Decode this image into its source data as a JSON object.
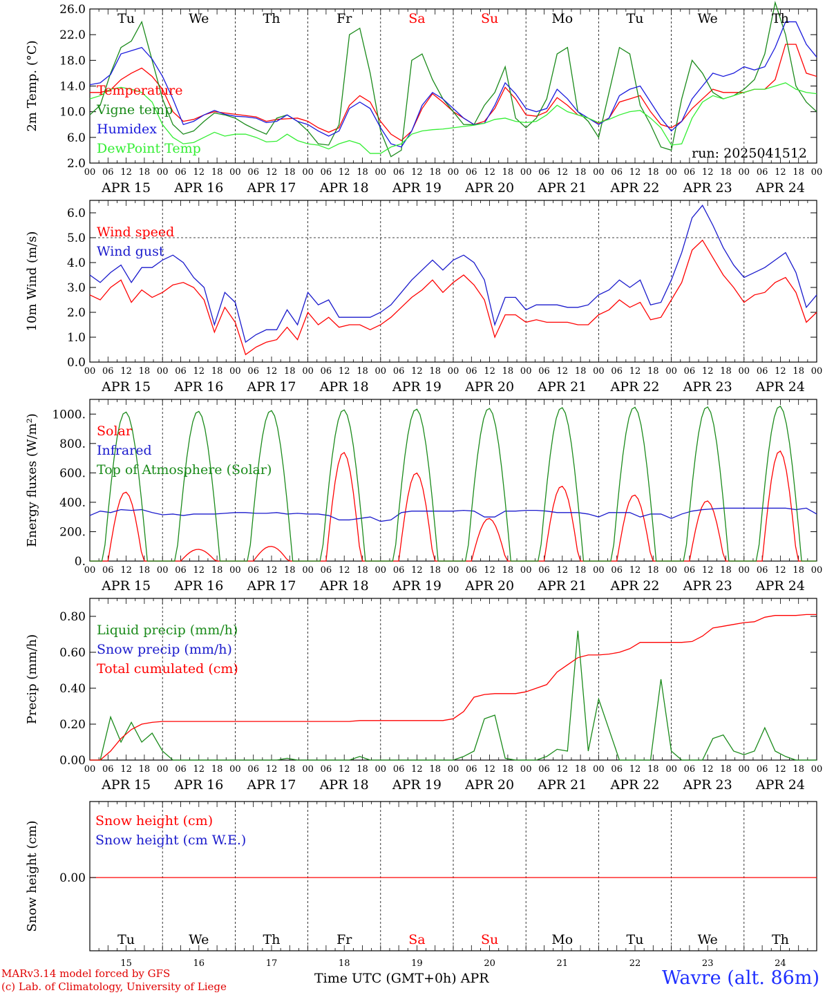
{
  "footer": {
    "model": "MARv3.14 model forced by GFS",
    "lab": "(c) Lab. of Climatology, University of Liege",
    "xaxis": "Time UTC (GMT+0h) APR",
    "site": "Wavre (alt. 86m)"
  },
  "chart_data": [
    {
      "type": "line",
      "ylabel": "2m Temp. (°C)",
      "ylim": [
        2.0,
        26.0
      ],
      "yticks": [
        "2.0",
        "6.0",
        "10.0",
        "14.0",
        "18.0",
        "22.0",
        "26.0"
      ],
      "annotation": "run: 2025041512",
      "days_top": [
        "Tu",
        "We",
        "Th",
        "Fr",
        "Sa",
        "Su",
        "Mo",
        "Tu",
        "We",
        "Th"
      ],
      "date_labels": [
        "APR 15",
        "APR 16",
        "APR 17",
        "APR 18",
        "APR 19",
        "APR 20",
        "APR 21",
        "APR 22",
        "APR 23",
        "APR 24"
      ],
      "hour_labels": [
        "00",
        "06",
        "12",
        "18"
      ],
      "x": "hours since APR 15 00 UTC, every 3h",
      "series": [
        {
          "name": "Temperature",
          "color": "#ff0000",
          "values": [
            13,
            13,
            13.4,
            15,
            16,
            16.8,
            15.5,
            13.5,
            10,
            8.5,
            8.8,
            9.5,
            10,
            9.8,
            9.6,
            9.4,
            9.2,
            8.5,
            8.8,
            8.9,
            9,
            8.5,
            7.5,
            6.8,
            7.5,
            11,
            12.5,
            11.5,
            8.5,
            6.5,
            5.5,
            7,
            10.5,
            12.8,
            11.5,
            10,
            9,
            8,
            8.5,
            10.5,
            13.8,
            12,
            9.5,
            9.3,
            10,
            12.2,
            11,
            9.5,
            9,
            8.2,
            9,
            11.5,
            12,
            12.5,
            10,
            8,
            7.5,
            8.5,
            10.5,
            12,
            13.5,
            13,
            13,
            13,
            13.5,
            13.5,
            15,
            20.5,
            20.5,
            16,
            15.5
          ]
        },
        {
          "name": "Vigne temp",
          "color": "#1a8a1a",
          "values": [
            9.5,
            11,
            16,
            20,
            21,
            24,
            18,
            12,
            8,
            6.5,
            7,
            8.5,
            9.8,
            9.5,
            9,
            8,
            7.2,
            6.5,
            9,
            9.5,
            8.5,
            7,
            5,
            4.8,
            8,
            22,
            23,
            16,
            7,
            3,
            4,
            18,
            19,
            15,
            12,
            10,
            8,
            8,
            11,
            13,
            17,
            9,
            7.5,
            9,
            12,
            19,
            20,
            10,
            8.5,
            6,
            13,
            20,
            19,
            11,
            8,
            4.5,
            4,
            12,
            18,
            16,
            13,
            12,
            12.5,
            13.5,
            15,
            19,
            27,
            22,
            14,
            11.5,
            10
          ]
        },
        {
          "name": "Humidex",
          "color": "#1a1adc",
          "values": [
            14.2,
            14.5,
            15.8,
            19,
            19.5,
            20,
            18.2,
            15.5,
            12,
            8,
            8.5,
            9.5,
            10.2,
            9.6,
            9.3,
            9.2,
            9,
            8.3,
            8.5,
            9.5,
            8.5,
            8,
            7,
            6.2,
            7,
            10.5,
            11.5,
            10.5,
            7.5,
            5,
            4.5,
            7,
            11,
            13,
            12,
            10.5,
            9,
            8,
            8.2,
            11,
            14.5,
            12.8,
            10.5,
            10,
            10.5,
            13.5,
            12,
            10,
            9,
            8,
            9,
            12.5,
            13.5,
            14,
            11.5,
            9,
            7,
            8.5,
            12,
            14,
            16,
            15.5,
            16,
            17,
            16.5,
            17,
            20,
            24,
            24,
            20.5,
            18.5
          ]
        },
        {
          "name": "DewPoint Temp",
          "color": "#33ee33",
          "values": [
            12,
            12.5,
            13.5,
            13.8,
            13.5,
            13,
            11.5,
            8,
            6,
            5,
            5.2,
            6,
            6.8,
            6.2,
            6.5,
            6.5,
            6,
            5.3,
            5.4,
            6.5,
            5.5,
            5,
            4.8,
            4.2,
            5,
            5.5,
            5,
            3.5,
            3.5,
            4.5,
            5,
            6.5,
            7,
            7.2,
            7.3,
            7.5,
            7.7,
            7.9,
            8.2,
            8.8,
            9,
            8.5,
            8.3,
            8.5,
            9.5,
            11,
            10,
            9.5,
            9,
            8.3,
            8.8,
            9.5,
            10,
            10.2,
            9,
            7.5,
            4.8,
            5,
            9,
            11.5,
            12.5,
            12,
            12.5,
            13,
            13.5,
            13.5,
            14,
            14.5,
            13.5,
            13,
            12.8
          ]
        }
      ]
    },
    {
      "type": "line",
      "ylabel": "10m Wind (m/s)",
      "ylim": [
        0.0,
        6.5
      ],
      "yticks": [
        "0.0",
        "1.0",
        "2.0",
        "3.0",
        "4.0",
        "5.0",
        "6.0"
      ],
      "hline": 5.0,
      "date_labels": [
        "APR 15",
        "APR 16",
        "APR 17",
        "APR 18",
        "APR 19",
        "APR 20",
        "APR 21",
        "APR 22",
        "APR 23",
        "APR 24"
      ],
      "hour_labels": [
        "00",
        "06",
        "12",
        "18"
      ],
      "series": [
        {
          "name": "Wind speed",
          "color": "#ff0000",
          "values": [
            2.7,
            2.5,
            3,
            3.3,
            2.4,
            2.9,
            2.6,
            2.8,
            3.1,
            3.2,
            3,
            2.5,
            1.2,
            2.2,
            1.6,
            0.3,
            0.6,
            0.8,
            0.9,
            1.4,
            0.9,
            2,
            1.5,
            1.8,
            1.4,
            1.5,
            1.5,
            1.3,
            1.5,
            1.8,
            2.2,
            2.6,
            2.9,
            3.3,
            2.8,
            3.2,
            3.5,
            3.1,
            2.5,
            1.0,
            1.9,
            1.9,
            1.6,
            1.7,
            1.6,
            1.6,
            1.6,
            1.5,
            1.5,
            1.9,
            2.1,
            2.5,
            2.2,
            2.4,
            1.7,
            1.8,
            2.5,
            3.2,
            4.5,
            4.9,
            4.2,
            3.5,
            3.0,
            2.4,
            2.7,
            2.8,
            3.2,
            3.4,
            2.8,
            1.6,
            2.0
          ]
        },
        {
          "name": "Wind gust",
          "color": "#1a1acc",
          "values": [
            3.5,
            3.2,
            3.6,
            3.9,
            3.2,
            3.8,
            3.8,
            4.1,
            4.3,
            4,
            3.4,
            3.0,
            1.5,
            2.8,
            2.4,
            0.8,
            1.1,
            1.3,
            1.3,
            2.1,
            1.5,
            2.8,
            2.3,
            2.5,
            1.8,
            1.8,
            1.8,
            1.8,
            2.0,
            2.3,
            2.8,
            3.3,
            3.7,
            4.1,
            3.7,
            4.1,
            4.3,
            4.0,
            3.3,
            1.5,
            2.6,
            2.6,
            2.1,
            2.3,
            2.3,
            2.3,
            2.2,
            2.2,
            2.3,
            2.7,
            2.9,
            3.3,
            3.0,
            3.3,
            2.3,
            2.4,
            3.3,
            4.4,
            5.8,
            6.3,
            5.5,
            4.6,
            3.9,
            3.4,
            3.6,
            3.8,
            4.1,
            4.4,
            3.6,
            2.2,
            2.7
          ]
        }
      ]
    },
    {
      "type": "line",
      "ylabel": "Energy fluxes (W/m²)",
      "ylim": [
        0,
        1100
      ],
      "yticks": [
        "0.",
        "200.",
        "400.",
        "600.",
        "800.",
        "1000."
      ],
      "date_labels": [
        "APR 15",
        "APR 16",
        "APR 17",
        "APR 18",
        "APR 19",
        "APR 20",
        "APR 21",
        "APR 22",
        "APR 23",
        "APR 24"
      ],
      "hour_labels": [
        "00",
        "06",
        "12",
        "18"
      ],
      "series": [
        {
          "name": "Solar",
          "color": "#ff0000",
          "daily_peak": [
            470,
            80,
            100,
            740,
            600,
            290,
            510,
            450,
            410,
            750
          ]
        },
        {
          "name": "Infrared",
          "color": "#1a1acc",
          "values": [
            310,
            340,
            330,
            350,
            345,
            350,
            330,
            315,
            320,
            310,
            320,
            320,
            320,
            325,
            330,
            330,
            325,
            325,
            330,
            320,
            325,
            320,
            320,
            310,
            280,
            280,
            290,
            300,
            270,
            280,
            330,
            340,
            340,
            340,
            340,
            340,
            345,
            340,
            300,
            300,
            340,
            340,
            345,
            345,
            340,
            330,
            330,
            330,
            320,
            300,
            330,
            330,
            330,
            300,
            320,
            320,
            290,
            320,
            340,
            350,
            355,
            360,
            360,
            360,
            360,
            360,
            360,
            360,
            350,
            360,
            320
          ]
        },
        {
          "name": "Top of Atmosphere (Solar)",
          "color": "#1a8a1a",
          "daily_peak": [
            1015,
            1020,
            1025,
            1030,
            1035,
            1040,
            1045,
            1048,
            1050,
            1055
          ]
        }
      ]
    },
    {
      "type": "line",
      "ylabel": "Precip (mm/h)",
      "ylim": [
        0.0,
        0.9
      ],
      "yticks": [
        "0.00",
        "0.20",
        "0.40",
        "0.60",
        "0.80"
      ],
      "date_labels": [
        "APR 15",
        "APR 16",
        "APR 17",
        "APR 18",
        "APR 19",
        "APR 20",
        "APR 21",
        "APR 22",
        "APR 23",
        "APR 24"
      ],
      "hour_labels": [
        "00",
        "06",
        "12",
        "18"
      ],
      "series": [
        {
          "name": "Liquid precip (mm/h)",
          "color": "#1a8a1a",
          "values": [
            0,
            0,
            0.24,
            0.1,
            0.21,
            0.1,
            0.15,
            0.05,
            0,
            0,
            0,
            0,
            0,
            0,
            0,
            0,
            0,
            0,
            0,
            0.01,
            0,
            0,
            0,
            0,
            0,
            0,
            0.02,
            0,
            0,
            0,
            0,
            0,
            0,
            0,
            0,
            0,
            0.02,
            0.05,
            0.23,
            0.25,
            0.01,
            0,
            0,
            0,
            0.02,
            0.06,
            0.05,
            0.72,
            0.05,
            0.34,
            0.17,
            0,
            0,
            0,
            0,
            0.45,
            0.05,
            0,
            0,
            0,
            0.12,
            0.14,
            0.05,
            0.03,
            0.05,
            0.18,
            0.05,
            0.02,
            0,
            0,
            0
          ]
        },
        {
          "name": "Snow precip (mm/h)",
          "color": "#1a1acc",
          "values": []
        },
        {
          "name": "Total cumulated (cm)",
          "color": "#ff0000",
          "values": [
            0,
            0,
            0.05,
            0.12,
            0.17,
            0.2,
            0.21,
            0.215,
            0.215,
            0.215,
            0.215,
            0.215,
            0.215,
            0.215,
            0.215,
            0.215,
            0.215,
            0.215,
            0.215,
            0.215,
            0.215,
            0.215,
            0.215,
            0.215,
            0.215,
            0.215,
            0.22,
            0.22,
            0.22,
            0.22,
            0.22,
            0.22,
            0.22,
            0.22,
            0.22,
            0.23,
            0.27,
            0.35,
            0.365,
            0.37,
            0.37,
            0.37,
            0.38,
            0.4,
            0.42,
            0.49,
            0.53,
            0.57,
            0.585,
            0.585,
            0.59,
            0.6,
            0.62,
            0.655,
            0.655,
            0.655,
            0.655,
            0.655,
            0.66,
            0.69,
            0.735,
            0.745,
            0.755,
            0.765,
            0.77,
            0.795,
            0.805,
            0.805,
            0.805,
            0.81,
            0.81
          ]
        }
      ]
    },
    {
      "type": "line",
      "ylabel": "Snow height (cm)",
      "yticks": [
        "0.00"
      ],
      "days_bottom": [
        "Tu",
        "We",
        "Th",
        "Fr",
        "Sa",
        "Su",
        "Mo",
        "Tu",
        "We",
        "Th"
      ],
      "date_numbers": [
        "15",
        "16",
        "17",
        "18",
        "19",
        "20",
        "21",
        "22",
        "23",
        "24"
      ],
      "series": [
        {
          "name": "Snow height (cm)",
          "color": "#ff0000",
          "values": [
            0
          ]
        },
        {
          "name": "Snow height (cm W.E.)",
          "color": "#1a1acc",
          "values": [
            0
          ]
        }
      ]
    }
  ]
}
